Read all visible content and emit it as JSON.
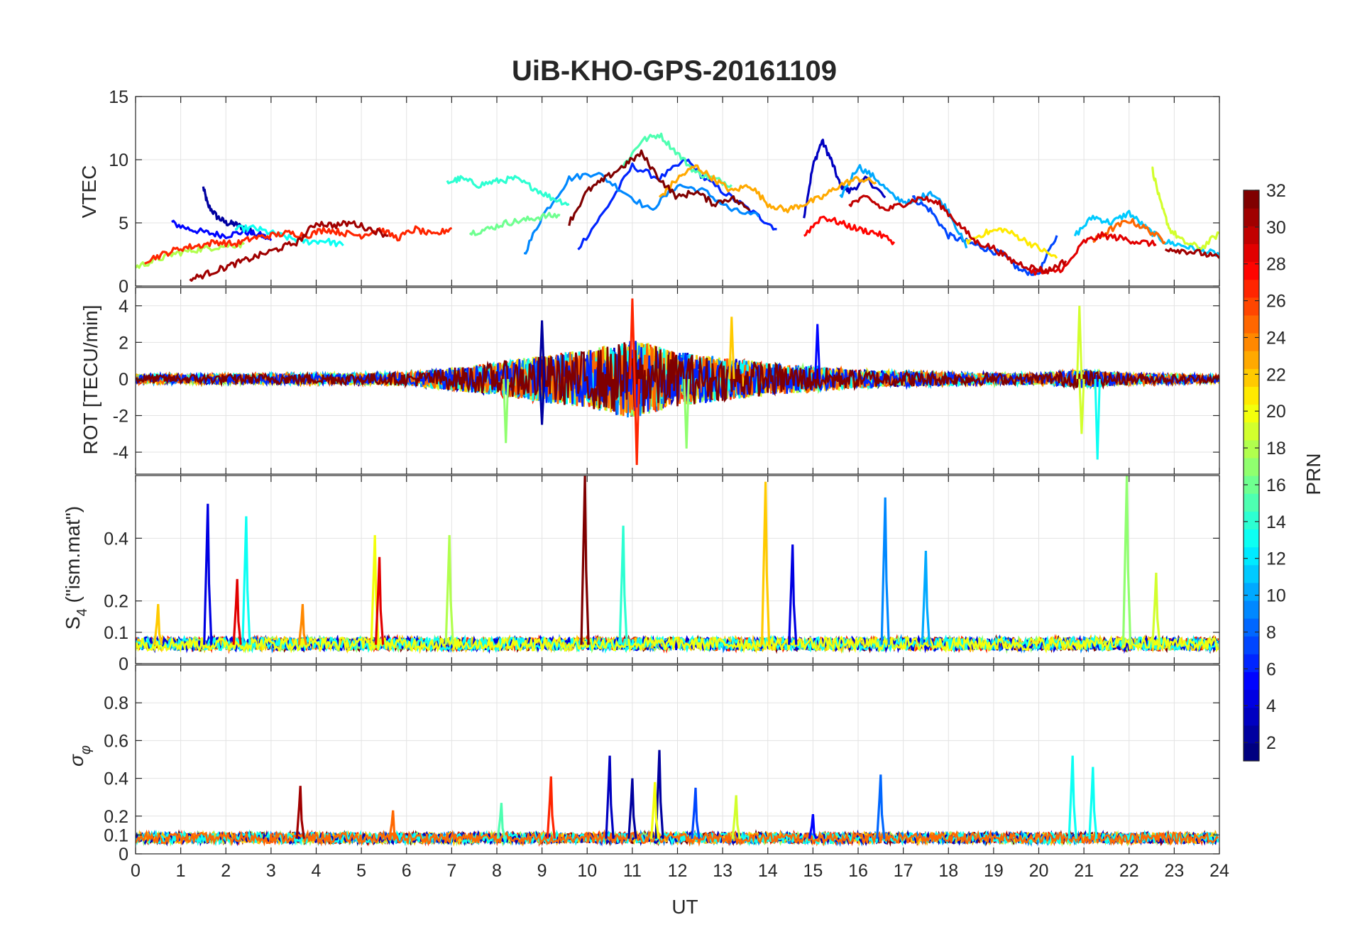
{
  "chart_data": [
    {
      "type": "line",
      "title": "UiB-KHO-GPS-20161109",
      "ylabel": "VTEC",
      "xlim": [
        0,
        24
      ],
      "ylim": [
        0,
        15
      ],
      "yticks": [
        0,
        5,
        10,
        15
      ],
      "grid": true,
      "series_key": "PRN",
      "series": [
        {
          "prn": 2,
          "x": [
            1.5,
            1.6,
            1.8,
            2.0,
            2.2,
            2.4,
            2.6
          ],
          "y": [
            7.8,
            6.4,
            5.5,
            5.0,
            4.9,
            4.6,
            4.3
          ]
        },
        {
          "prn": 3,
          "x": [
            14.8,
            15.0,
            15.2,
            15.4,
            15.6,
            15.8,
            16.2,
            16.6
          ],
          "y": [
            5.5,
            9.5,
            11.5,
            10.0,
            8.0,
            7.5,
            8.5,
            7.0
          ]
        },
        {
          "prn": 5,
          "x": [
            0.8,
            1.2,
            1.6,
            2.0,
            2.4,
            2.8,
            3.0
          ],
          "y": [
            5.0,
            4.5,
            4.2,
            4.0,
            4.3,
            4.0,
            3.6
          ]
        },
        {
          "prn": 6,
          "x": [
            9.8,
            10.4,
            11.0,
            11.6,
            12.2,
            12.6,
            13.2,
            13.8,
            14.2
          ],
          "y": [
            3.0,
            6.0,
            9.5,
            8.5,
            10.0,
            8.5,
            7.0,
            5.5,
            4.5
          ]
        },
        {
          "prn": 7,
          "x": [
            17.2,
            17.6,
            18.0,
            18.4,
            18.8,
            19.2,
            19.6,
            20.0,
            20.4
          ],
          "y": [
            7.0,
            6.0,
            4.0,
            3.5,
            3.0,
            2.5,
            1.2,
            1.0,
            4.0
          ]
        },
        {
          "prn": 9,
          "x": [
            8.6,
            9.0,
            9.6,
            10.2,
            10.8,
            11.4,
            12.0,
            12.6,
            13.2,
            13.8
          ],
          "y": [
            2.5,
            5.5,
            8.5,
            9.0,
            7.5,
            6.0,
            8.0,
            7.5,
            6.0,
            5.5
          ]
        },
        {
          "prn": 10,
          "x": [
            15.6,
            16.0,
            16.4,
            16.8,
            17.2,
            17.6,
            18.0,
            18.4
          ],
          "y": [
            7.0,
            9.5,
            8.5,
            7.0,
            6.5,
            7.5,
            6.0,
            3.0
          ]
        },
        {
          "prn": 11,
          "x": [
            20.8,
            21.2,
            21.6,
            22.0,
            22.4,
            22.8,
            23.2,
            23.6,
            24.0
          ],
          "y": [
            4.0,
            5.5,
            5.0,
            5.8,
            4.5,
            3.5,
            3.2,
            2.8,
            2.5
          ]
        },
        {
          "prn": 13,
          "x": [
            2.2,
            2.6,
            3.0,
            3.4,
            3.8,
            4.2,
            4.6
          ],
          "y": [
            4.5,
            4.6,
            4.2,
            3.8,
            3.5,
            3.6,
            3.2
          ]
        },
        {
          "prn": 14,
          "x": [
            6.9,
            7.2,
            7.6,
            8.0,
            8.4,
            8.8,
            9.2,
            9.6
          ],
          "y": [
            8.2,
            8.5,
            8.0,
            8.3,
            8.5,
            7.8,
            7.0,
            6.5
          ]
        },
        {
          "prn": 15,
          "x": [
            10.8,
            11.2,
            11.6,
            12.0,
            12.4,
            12.8,
            13.2
          ],
          "y": [
            9.5,
            11.5,
            12.0,
            10.5,
            9.0,
            8.5,
            8.0
          ]
        },
        {
          "prn": 16,
          "x": [
            7.4,
            7.8,
            8.2,
            8.6,
            9.0,
            9.4
          ],
          "y": [
            4.2,
            4.5,
            5.0,
            5.2,
            5.5,
            5.6
          ]
        },
        {
          "prn": 18,
          "x": [
            0.0,
            0.4,
            0.8,
            1.2,
            1.6,
            2.0,
            2.4
          ],
          "y": [
            1.5,
            2.0,
            2.5,
            2.8,
            3.0,
            3.2,
            3.3
          ]
        },
        {
          "prn": 19,
          "x": [
            22.5,
            22.7,
            22.9,
            23.2,
            23.6,
            24.0
          ],
          "y": [
            9.5,
            6.5,
            4.5,
            3.5,
            3.0,
            4.2
          ]
        },
        {
          "prn": 21,
          "x": [
            18.4,
            18.8,
            19.2,
            19.6,
            20.0,
            20.4
          ],
          "y": [
            3.5,
            4.2,
            4.5,
            3.8,
            3.0,
            2.2
          ]
        },
        {
          "prn": 23,
          "x": [
            11.6,
            12.0,
            12.4,
            12.8,
            13.2,
            13.6,
            14.0,
            14.4,
            14.8,
            15.2,
            15.6,
            16.0,
            16.4
          ],
          "y": [
            7.0,
            8.5,
            9.5,
            8.5,
            7.5,
            8.0,
            6.5,
            6.0,
            6.5,
            7.0,
            8.0,
            8.5,
            8.2
          ]
        },
        {
          "prn": 25,
          "x": [
            21.2,
            21.6,
            22.0,
            22.4,
            22.8
          ],
          "y": [
            3.5,
            4.5,
            5.2,
            4.5,
            3.5
          ]
        },
        {
          "prn": 27,
          "x": [
            0.2,
            0.6,
            1.0,
            1.4,
            1.8,
            2.2,
            2.6,
            3.0,
            3.4,
            3.8,
            4.2,
            4.6,
            5.0,
            5.4,
            5.8,
            6.2,
            6.6,
            7.0
          ],
          "y": [
            2.0,
            2.5,
            3.0,
            3.2,
            3.5,
            3.3,
            3.8,
            4.0,
            4.2,
            4.0,
            4.5,
            4.2,
            4.0,
            4.5,
            3.8,
            4.5,
            4.0,
            4.6
          ]
        },
        {
          "prn": 28,
          "x": [
            14.8,
            15.2,
            15.6,
            16.0,
            16.4,
            16.8
          ],
          "y": [
            4.0,
            5.5,
            5.0,
            4.5,
            4.2,
            3.5
          ]
        },
        {
          "prn": 29,
          "x": [
            19.8,
            20.2,
            20.6,
            21.0,
            21.4,
            21.8,
            22.2,
            22.6
          ],
          "y": [
            1.2,
            1.0,
            1.5,
            3.5,
            4.0,
            3.8,
            3.5,
            3.3
          ]
        },
        {
          "prn": 30,
          "x": [
            15.8,
            16.2,
            16.6,
            17.0,
            17.4,
            17.8,
            18.2,
            18.6,
            19.0,
            19.4,
            19.8,
            20.2,
            20.6
          ],
          "y": [
            6.5,
            7.0,
            6.0,
            6.5,
            7.0,
            6.5,
            5.0,
            3.5,
            3.0,
            2.0,
            1.5,
            1.2,
            2.0
          ]
        },
        {
          "prn": 31,
          "x": [
            1.2,
            1.6,
            2.0,
            2.4,
            2.8,
            3.2,
            3.6,
            4.0,
            4.4,
            4.8,
            5.2,
            5.6
          ],
          "y": [
            0.5,
            1.0,
            1.5,
            2.0,
            2.5,
            3.0,
            3.5,
            5.0,
            4.8,
            5.0,
            4.5,
            4.0
          ]
        },
        {
          "prn": 32,
          "x": [
            9.6,
            10.0,
            10.4,
            10.8,
            11.2,
            11.6,
            12.0,
            12.4,
            12.8,
            13.2,
            13.6
          ],
          "y": [
            5.0,
            7.5,
            8.5,
            9.5,
            10.5,
            8.5,
            7.0,
            7.5,
            6.5,
            7.0,
            6.0
          ]
        },
        {
          "prn": 31,
          "x": [
            22.8,
            23.2,
            23.6,
            24.0
          ],
          "y": [
            3.0,
            2.8,
            2.6,
            2.2
          ]
        }
      ]
    },
    {
      "type": "line",
      "ylabel": "ROT [TECU/min]",
      "xlim": [
        0,
        24
      ],
      "ylim": [
        -5.2,
        5.0
      ],
      "yticks": [
        -4,
        -2,
        0,
        2,
        4
      ],
      "grid": true,
      "series_key": "PRN",
      "activity": [
        {
          "x": 0,
          "amp": 0.25
        },
        {
          "x": 4,
          "amp": 0.3
        },
        {
          "x": 6,
          "amp": 0.35
        },
        {
          "x": 8,
          "amp": 0.9
        },
        {
          "x": 9,
          "amp": 1.3
        },
        {
          "x": 10,
          "amp": 1.6
        },
        {
          "x": 11,
          "amp": 2.2
        },
        {
          "x": 12,
          "amp": 1.5
        },
        {
          "x": 13,
          "amp": 1.2
        },
        {
          "x": 14,
          "amp": 0.9
        },
        {
          "x": 15,
          "amp": 0.7
        },
        {
          "x": 16,
          "amp": 0.5
        },
        {
          "x": 18,
          "amp": 0.35
        },
        {
          "x": 20,
          "amp": 0.3
        },
        {
          "x": 21,
          "amp": 0.5
        },
        {
          "x": 22,
          "amp": 0.3
        },
        {
          "x": 24,
          "amp": 0.2
        }
      ],
      "spikes": [
        {
          "prn": 27,
          "x": 11.0,
          "y": 4.4
        },
        {
          "prn": 27,
          "x": 11.1,
          "y": -4.7
        },
        {
          "prn": 19,
          "x": 20.9,
          "y": 4.0
        },
        {
          "prn": 19,
          "x": 20.95,
          "y": -3.0
        },
        {
          "prn": 13,
          "x": 21.3,
          "y": -4.4
        },
        {
          "prn": 2,
          "x": 9.0,
          "y": 3.2
        },
        {
          "prn": 2,
          "x": 9.0,
          "y": -2.5
        },
        {
          "prn": 17,
          "x": 8.2,
          "y": -3.5
        },
        {
          "prn": 17,
          "x": 12.2,
          "y": -3.8
        },
        {
          "prn": 22,
          "x": 13.2,
          "y": 3.4
        },
        {
          "prn": 5,
          "x": 15.1,
          "y": 3.0
        }
      ]
    },
    {
      "type": "line",
      "ylabel": "S4 (\"ism.mat\")",
      "xlim": [
        0,
        24
      ],
      "ylim": [
        0,
        0.6
      ],
      "yticks": [
        0,
        0.1,
        0.2,
        0.4
      ],
      "grid": true,
      "series_key": "PRN",
      "baseline": 0.06,
      "spikes": [
        {
          "prn": 4,
          "x": 1.6,
          "y": 0.51
        },
        {
          "prn": 13,
          "x": 2.45,
          "y": 0.47
        },
        {
          "prn": 29,
          "x": 2.25,
          "y": 0.27
        },
        {
          "prn": 20,
          "x": 5.3,
          "y": 0.41
        },
        {
          "prn": 29,
          "x": 5.4,
          "y": 0.34
        },
        {
          "prn": 18,
          "x": 6.95,
          "y": 0.41
        },
        {
          "prn": 32,
          "x": 9.95,
          "y": 0.6
        },
        {
          "prn": 14,
          "x": 10.8,
          "y": 0.44
        },
        {
          "prn": 22,
          "x": 13.95,
          "y": 0.58
        },
        {
          "prn": 4,
          "x": 14.55,
          "y": 0.38
        },
        {
          "prn": 9,
          "x": 16.6,
          "y": 0.53
        },
        {
          "prn": 10,
          "x": 17.5,
          "y": 0.36
        },
        {
          "prn": 17,
          "x": 21.95,
          "y": 0.6
        },
        {
          "prn": 19,
          "x": 22.6,
          "y": 0.29
        },
        {
          "prn": 24,
          "x": 3.7,
          "y": 0.19
        },
        {
          "prn": 22,
          "x": 0.5,
          "y": 0.19
        }
      ]
    },
    {
      "type": "line",
      "ylabel": "σφ",
      "xlim": [
        0,
        24
      ],
      "ylim": [
        0,
        1.0
      ],
      "yticks": [
        0,
        0.1,
        0.2,
        0.4,
        0.6,
        0.8
      ],
      "grid": true,
      "series_key": "PRN",
      "baseline": 0.08,
      "spikes": [
        {
          "prn": 31,
          "x": 3.65,
          "y": 0.36
        },
        {
          "prn": 27,
          "x": 9.2,
          "y": 0.41
        },
        {
          "prn": 3,
          "x": 10.5,
          "y": 0.52
        },
        {
          "prn": 2,
          "x": 11.0,
          "y": 0.4
        },
        {
          "prn": 2,
          "x": 11.6,
          "y": 0.55
        },
        {
          "prn": 20,
          "x": 11.5,
          "y": 0.38
        },
        {
          "prn": 7,
          "x": 12.4,
          "y": 0.35
        },
        {
          "prn": 8,
          "x": 16.5,
          "y": 0.42
        },
        {
          "prn": 13,
          "x": 20.75,
          "y": 0.52
        },
        {
          "prn": 13,
          "x": 21.2,
          "y": 0.46
        },
        {
          "prn": 15,
          "x": 8.1,
          "y": 0.27
        },
        {
          "prn": 5,
          "x": 15.0,
          "y": 0.21
        },
        {
          "prn": 25,
          "x": 5.7,
          "y": 0.23
        },
        {
          "prn": 19,
          "x": 13.3,
          "y": 0.31
        }
      ]
    }
  ],
  "figure": {
    "title": "UiB-KHO-GPS-20161109",
    "xlabel": "UT",
    "xticks": [
      0,
      1,
      2,
      3,
      4,
      5,
      6,
      7,
      8,
      9,
      10,
      11,
      12,
      13,
      14,
      15,
      16,
      17,
      18,
      19,
      20,
      21,
      22,
      23,
      24
    ],
    "panel_labels": {
      "vtec": "VTEC",
      "rot": "ROT [TECU/min]",
      "s4_main": "S",
      "s4_sub": "4",
      "s4_tail": " (\"ism.mat\")",
      "sigma_main": "σ",
      "sigma_sub": "φ"
    }
  },
  "colorbar": {
    "label": "PRN",
    "range": [
      1,
      32
    ],
    "ticks": [
      2,
      4,
      6,
      8,
      10,
      12,
      14,
      16,
      18,
      20,
      22,
      24,
      26,
      28,
      30,
      32
    ],
    "colormap": "jet"
  }
}
